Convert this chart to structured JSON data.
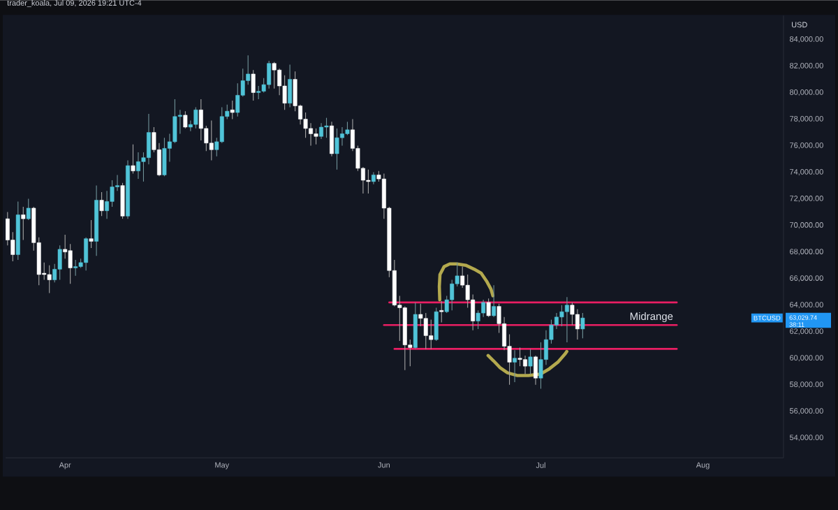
{
  "chart_data": {
    "type": "candlestick",
    "title": "trader_koala, Jul 09, 2026 19:21 UTC-4",
    "ylabel": "USD",
    "x": [
      "2026-03-21",
      "2026-03-22",
      "2026-03-23",
      "2026-03-24",
      "2026-03-25",
      "2026-03-26",
      "2026-03-27",
      "2026-03-28",
      "2026-03-29",
      "2026-03-30",
      "2026-03-31",
      "2026-04-01",
      "2026-04-02",
      "2026-04-03",
      "2026-04-04",
      "2026-04-05",
      "2026-04-06",
      "2026-04-07",
      "2026-04-08",
      "2026-04-09",
      "2026-04-10",
      "2026-04-11",
      "2026-04-12",
      "2026-04-13",
      "2026-04-14",
      "2026-04-15",
      "2026-04-16",
      "2026-04-17",
      "2026-04-18",
      "2026-04-19",
      "2026-04-20",
      "2026-04-21",
      "2026-04-22",
      "2026-04-23",
      "2026-04-24",
      "2026-04-25",
      "2026-04-26",
      "2026-04-27",
      "2026-04-28",
      "2026-04-29",
      "2026-04-30",
      "2026-05-01",
      "2026-05-02",
      "2026-05-03",
      "2026-05-04",
      "2026-05-05",
      "2026-05-06",
      "2026-05-07",
      "2026-05-08",
      "2026-05-09",
      "2026-05-10",
      "2026-05-11",
      "2026-05-12",
      "2026-05-13",
      "2026-05-14",
      "2026-05-15",
      "2026-05-16",
      "2026-05-17",
      "2026-05-18",
      "2026-05-19",
      "2026-05-20",
      "2026-05-21",
      "2026-05-22",
      "2026-05-23",
      "2026-05-24",
      "2026-05-25",
      "2026-05-26",
      "2026-05-27",
      "2026-05-28",
      "2026-05-29",
      "2026-05-30",
      "2026-05-31",
      "2026-06-01",
      "2026-06-02",
      "2026-06-03",
      "2026-06-04",
      "2026-06-05",
      "2026-06-06",
      "2026-06-07",
      "2026-06-08",
      "2026-06-09",
      "2026-06-10",
      "2026-06-11",
      "2026-06-12",
      "2026-06-13",
      "2026-06-14",
      "2026-06-15",
      "2026-06-16",
      "2026-06-17",
      "2026-06-18",
      "2026-06-19",
      "2026-06-20",
      "2026-06-21",
      "2026-06-22",
      "2026-06-23",
      "2026-06-24",
      "2026-06-25",
      "2026-06-26",
      "2026-06-27",
      "2026-06-28",
      "2026-06-29",
      "2026-06-30",
      "2026-07-01",
      "2026-07-02",
      "2026-07-03",
      "2026-07-04",
      "2026-07-05",
      "2026-07-06",
      "2026-07-07",
      "2026-07-08",
      "2026-07-09"
    ],
    "ohlc": [
      [
        70500,
        71000,
        68500,
        68900
      ],
      [
        68900,
        69500,
        67300,
        67800
      ],
      [
        67800,
        71800,
        67400,
        70800
      ],
      [
        70800,
        71400,
        68900,
        70500
      ],
      [
        70500,
        72000,
        70400,
        71300
      ],
      [
        71300,
        71400,
        68100,
        68700
      ],
      [
        68700,
        69100,
        65500,
        66300
      ],
      [
        66400,
        67200,
        65900,
        66300
      ],
      [
        66300,
        67000,
        64900,
        65900
      ],
      [
        65900,
        67100,
        65700,
        66700
      ],
      [
        66700,
        68500,
        65900,
        68200
      ],
      [
        68200,
        69300,
        67500,
        68000
      ],
      [
        68100,
        68600,
        65600,
        66800
      ],
      [
        66800,
        67400,
        66200,
        66900
      ],
      [
        66900,
        67500,
        66800,
        67200
      ],
      [
        67200,
        69100,
        66600,
        69000
      ],
      [
        69000,
        70400,
        68300,
        68800
      ],
      [
        68800,
        73000,
        67700,
        71900
      ],
      [
        71900,
        72500,
        70700,
        71100
      ],
      [
        71100,
        72600,
        70500,
        71800
      ],
      [
        71800,
        73400,
        71400,
        72900
      ],
      [
        72900,
        73800,
        72600,
        73000
      ],
      [
        73000,
        73200,
        70500,
        70700
      ],
      [
        70700,
        74900,
        70500,
        74500
      ],
      [
        74500,
        76100,
        73900,
        74100
      ],
      [
        74100,
        75500,
        73500,
        74800
      ],
      [
        74800,
        75500,
        73300,
        75100
      ],
      [
        75100,
        78400,
        74600,
        77000
      ],
      [
        77000,
        77400,
        75500,
        75700
      ],
      [
        75700,
        76200,
        73700,
        73800
      ],
      [
        73800,
        76600,
        73700,
        75800
      ],
      [
        75800,
        76900,
        74800,
        76300
      ],
      [
        76300,
        79500,
        76200,
        78200
      ],
      [
        78200,
        78700,
        76900,
        78300
      ],
      [
        78300,
        78600,
        77300,
        77400
      ],
      [
        77400,
        77900,
        77100,
        77600
      ],
      [
        77600,
        78900,
        77300,
        78700
      ],
      [
        78700,
        79500,
        76400,
        77300
      ],
      [
        77300,
        77500,
        75600,
        76200
      ],
      [
        76200,
        77900,
        74900,
        75700
      ],
      [
        75700,
        76600,
        75200,
        76300
      ],
      [
        76300,
        78900,
        76200,
        78200
      ],
      [
        78200,
        79100,
        78000,
        78600
      ],
      [
        78700,
        79400,
        78000,
        78500
      ],
      [
        78500,
        80700,
        78200,
        79800
      ],
      [
        79800,
        81800,
        79700,
        80900
      ],
      [
        80900,
        82800,
        80600,
        81400
      ],
      [
        81400,
        81700,
        79400,
        80000
      ],
      [
        80000,
        80500,
        79500,
        80100
      ],
      [
        80100,
        81100,
        80000,
        80600
      ],
      [
        80600,
        82400,
        80300,
        82200
      ],
      [
        82200,
        82300,
        80300,
        81700
      ],
      [
        81700,
        81800,
        79800,
        80500
      ],
      [
        80500,
        81300,
        78700,
        79200
      ],
      [
        79200,
        82100,
        78900,
        81000
      ],
      [
        81000,
        81600,
        78600,
        79000
      ],
      [
        79000,
        79100,
        77600,
        78000
      ],
      [
        78000,
        78500,
        76600,
        77300
      ],
      [
        77300,
        77700,
        76000,
        76900
      ],
      [
        76900,
        77300,
        76100,
        76700
      ],
      [
        76700,
        77700,
        76500,
        77400
      ],
      [
        77400,
        78100,
        76600,
        77500
      ],
      [
        77500,
        77800,
        75200,
        75400
      ],
      [
        75400,
        77300,
        74200,
        76600
      ],
      [
        76600,
        77400,
        76000,
        76900
      ],
      [
        76900,
        77800,
        76800,
        77200
      ],
      [
        77200,
        78000,
        75600,
        75800
      ],
      [
        75800,
        76000,
        74100,
        74300
      ],
      [
        74300,
        74400,
        72400,
        73400
      ],
      [
        73400,
        74200,
        72400,
        73300
      ],
      [
        73300,
        74000,
        73100,
        73800
      ],
      [
        73800,
        74100,
        73300,
        73500
      ],
      [
        73500,
        73900,
        70500,
        71300
      ],
      [
        71300,
        71400,
        66100,
        66600
      ],
      [
        66600,
        67400,
        63900,
        64000
      ],
      [
        64000,
        64700,
        61300,
        63800
      ],
      [
        63800,
        63900,
        59100,
        61000
      ],
      [
        61000,
        61400,
        59400,
        60800
      ],
      [
        60800,
        64200,
        60700,
        63300
      ],
      [
        63300,
        64100,
        62400,
        63000
      ],
      [
        63000,
        63400,
        60700,
        61700
      ],
      [
        61700,
        62900,
        60700,
        61400
      ],
      [
        61400,
        63800,
        61300,
        63500
      ],
      [
        63600,
        64300,
        62700,
        63500
      ],
      [
        63500,
        64700,
        63400,
        64400
      ],
      [
        64400,
        65900,
        63600,
        65600
      ],
      [
        65600,
        67200,
        65400,
        66200
      ],
      [
        66200,
        66900,
        65300,
        65500
      ],
      [
        65500,
        66300,
        63800,
        64400
      ],
      [
        64400,
        64800,
        62100,
        62800
      ],
      [
        62800,
        63600,
        62200,
        63400
      ],
      [
        63400,
        64400,
        63100,
        64200
      ],
      [
        64200,
        64500,
        63100,
        63200
      ],
      [
        63200,
        65500,
        63100,
        63900
      ],
      [
        63900,
        64100,
        61900,
        62600
      ],
      [
        62600,
        63100,
        60600,
        60900
      ],
      [
        60900,
        61800,
        58000,
        59700
      ],
      [
        59700,
        60600,
        58200,
        60000
      ],
      [
        60000,
        60800,
        59400,
        59900
      ],
      [
        59900,
        60200,
        58800,
        59400
      ],
      [
        59400,
        60700,
        58800,
        60100
      ],
      [
        60100,
        60200,
        58000,
        58500
      ],
      [
        58500,
        61200,
        57700,
        59900
      ],
      [
        59900,
        62100,
        59500,
        61400
      ],
      [
        61400,
        62900,
        61100,
        62500
      ],
      [
        62500,
        63400,
        62200,
        63100
      ],
      [
        63100,
        64000,
        62400,
        63500
      ],
      [
        63500,
        64600,
        61200,
        64000
      ],
      [
        64000,
        64200,
        62500,
        63300
      ],
      [
        63300,
        63700,
        61400,
        62200
      ],
      [
        62200,
        63400,
        61500,
        63029.74
      ]
    ],
    "colors": [
      "#ffffff",
      "#ffffff",
      "#50c4d8",
      "#ffffff",
      "#50c4d8",
      "#ffffff",
      "#ffffff",
      "#ffffff",
      "#ffffff",
      "#50c4d8",
      "#50c4d8",
      "#ffffff",
      "#ffffff",
      "#50c4d8",
      "#50c4d8",
      "#50c4d8",
      "#ffffff",
      "#50c4d8",
      "#ffffff",
      "#50c4d8",
      "#50c4d8",
      "#50c4d8",
      "#ffffff",
      "#50c4d8",
      "#ffffff",
      "#50c4d8",
      "#50c4d8",
      "#50c4d8",
      "#ffffff",
      "#ffffff",
      "#50c4d8",
      "#50c4d8",
      "#50c4d8",
      "#50c4d8",
      "#ffffff",
      "#50c4d8",
      "#50c4d8",
      "#ffffff",
      "#ffffff",
      "#ffffff",
      "#50c4d8",
      "#50c4d8",
      "#50c4d8",
      "#ffffff",
      "#50c4d8",
      "#50c4d8",
      "#50c4d8",
      "#ffffff",
      "#50c4d8",
      "#50c4d8",
      "#50c4d8",
      "#ffffff",
      "#ffffff",
      "#ffffff",
      "#50c4d8",
      "#ffffff",
      "#ffffff",
      "#ffffff",
      "#ffffff",
      "#ffffff",
      "#50c4d8",
      "#50c4d8",
      "#ffffff",
      "#50c4d8",
      "#50c4d8",
      "#50c4d8",
      "#ffffff",
      "#ffffff",
      "#ffffff",
      "#ffffff",
      "#50c4d8",
      "#ffffff",
      "#ffffff",
      "#ffffff",
      "#ffffff",
      "#ffffff",
      "#ffffff",
      "#ffffff",
      "#50c4d8",
      "#ffffff",
      "#ffffff",
      "#ffffff",
      "#50c4d8",
      "#ffffff",
      "#50c4d8",
      "#50c4d8",
      "#50c4d8",
      "#ffffff",
      "#ffffff",
      "#ffffff",
      "#50c4d8",
      "#50c4d8",
      "#ffffff",
      "#50c4d8",
      "#ffffff",
      "#ffffff",
      "#ffffff",
      "#50c4d8",
      "#ffffff",
      "#ffffff",
      "#50c4d8",
      "#ffffff",
      "#50c4d8",
      "#50c4d8",
      "#50c4d8",
      "#50c4d8",
      "#50c4d8",
      "#50c4d8",
      "#ffffff",
      "#ffffff",
      "#50c4d8"
    ],
    "series": [
      {
        "type": "line",
        "x": [
          "2026-06-02",
          "2026-07-27"
        ],
        "values": [
          64200,
          64200
        ],
        "color": "#e91e63"
      },
      {
        "type": "line",
        "name": "Midrange",
        "x": [
          "2026-06-01",
          "2026-07-27"
        ],
        "values": [
          62500,
          62500
        ],
        "color": "#e91e63"
      },
      {
        "type": "line",
        "x": [
          "2026-06-03",
          "2026-07-27"
        ],
        "values": [
          60700,
          60700
        ],
        "color": "#e91e63"
      },
      {
        "type": "line",
        "x": [
          "2026-06-11T16:00",
          "2026-06-11T14:00",
          "2026-06-11T17:00",
          "2026-06-12T12:00",
          "2026-06-13T14:00",
          "2026-06-14T22:00",
          "2026-06-16T15:00",
          "2026-06-18T06:00",
          "2026-06-19T14:00",
          "2026-06-20T15:00",
          "2026-06-21T11:00",
          "2026-06-21T20:00"
        ],
        "values": [
          64400,
          65400,
          66300,
          66900,
          67100,
          67100,
          67000,
          66700,
          66400,
          65800,
          65200,
          64700
        ],
        "color": "#b3a94e"
      },
      {
        "type": "line",
        "x": [
          "2026-06-20T22:00",
          "2026-06-21T23:00",
          "2026-06-23T04:00",
          "2026-06-24T15:00",
          "2026-06-26T12:00",
          "2026-06-28T15:00",
          "2026-06-30T22:00",
          "2026-07-02T15:00",
          "2026-07-04T06:00",
          "2026-07-05T14:00",
          "2026-07-05T23:00"
        ],
        "values": [
          60200,
          59800,
          59300,
          58900,
          58700,
          58700,
          58800,
          59200,
          59700,
          60300,
          60500
        ],
        "color": "#b3a94e"
      }
    ],
    "xlim": [
      "2026-03-20T15:00",
      "2026-08-16T10:00"
    ],
    "ylim": [
      52500,
      85800
    ],
    "xticks": [
      {
        "value": "2026-04-01",
        "label": "Apr"
      },
      {
        "value": "2026-05-01",
        "label": "May"
      },
      {
        "value": "2026-06-01",
        "label": "Jun"
      },
      {
        "value": "2026-07-01",
        "label": "Jul"
      },
      {
        "value": "2026-08-01",
        "label": "Aug"
      }
    ],
    "yticks": [
      {
        "value": 54000,
        "label": "54,000.00"
      },
      {
        "value": 56000,
        "label": "56,000.00"
      },
      {
        "value": 58000,
        "label": "58,000.00"
      },
      {
        "value": 60000,
        "label": "60,000.00"
      },
      {
        "value": 62000,
        "label": "62,000.00"
      },
      {
        "value": 64000,
        "label": "64,000.00"
      },
      {
        "value": 66000,
        "label": "66,000.00"
      },
      {
        "value": 68000,
        "label": "68,000.00"
      },
      {
        "value": 70000,
        "label": "70,000.00"
      },
      {
        "value": 72000,
        "label": "72,000.00"
      },
      {
        "value": 74000,
        "label": "74,000.00"
      },
      {
        "value": 76000,
        "label": "76,000.00"
      },
      {
        "value": 78000,
        "label": "78,000.00"
      },
      {
        "value": 80000,
        "label": "80,000.00"
      },
      {
        "value": 82000,
        "label": "82,000.00"
      },
      {
        "value": 84000,
        "label": "84,000.00"
      }
    ],
    "annotations": [
      "BTCUSD",
      "63,029.74",
      "38:11"
    ]
  }
}
